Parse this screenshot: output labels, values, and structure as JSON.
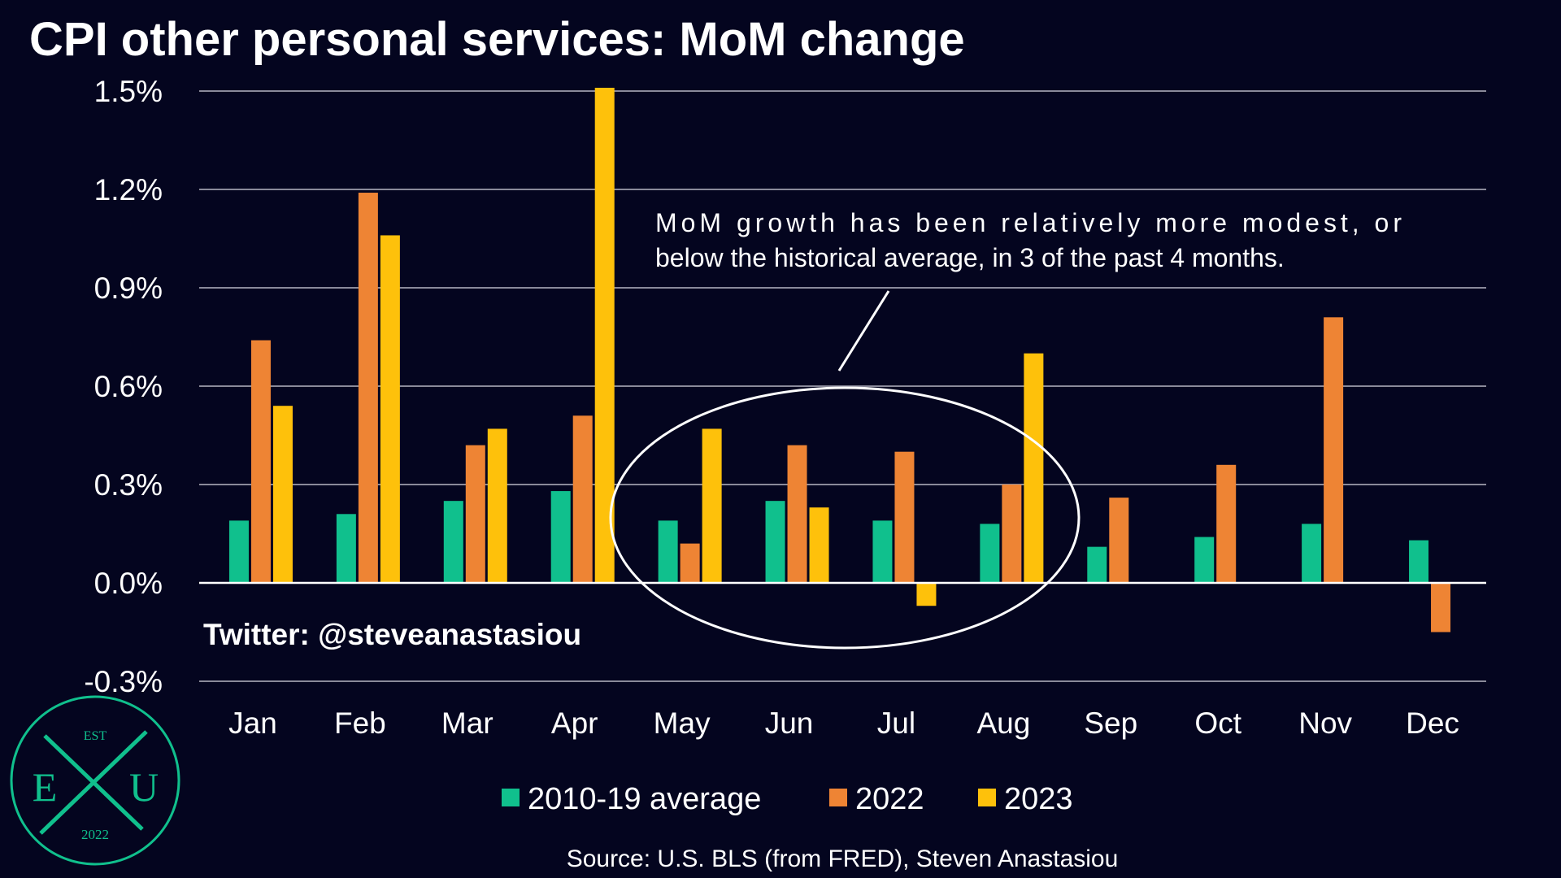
{
  "chart_data": {
    "type": "bar",
    "title": "CPI other personal services: MoM change",
    "categories": [
      "Jan",
      "Feb",
      "Mar",
      "Apr",
      "May",
      "Jun",
      "Jul",
      "Aug",
      "Sep",
      "Oct",
      "Nov",
      "Dec"
    ],
    "series": [
      {
        "name": "2010-19 average",
        "color": "#10c08d",
        "values": [
          0.19,
          0.21,
          0.25,
          0.28,
          0.19,
          0.25,
          0.19,
          0.18,
          0.11,
          0.14,
          0.18,
          0.13
        ]
      },
      {
        "name": "2022",
        "color": "#ee8434",
        "values": [
          0.74,
          1.19,
          0.42,
          0.51,
          0.12,
          0.42,
          0.4,
          0.3,
          0.26,
          0.36,
          0.81,
          -0.15
        ]
      },
      {
        "name": "2023",
        "color": "#fec10b",
        "values": [
          0.54,
          1.06,
          0.47,
          1.51,
          0.47,
          0.23,
          -0.07,
          0.7,
          null,
          null,
          null,
          null
        ]
      }
    ],
    "yticks": [
      "1.5%",
      "1.2%",
      "0.9%",
      "0.6%",
      "0.3%",
      "0.0%",
      "-0.3%"
    ],
    "ytick_values": [
      1.5,
      1.2,
      0.9,
      0.6,
      0.3,
      0.0,
      -0.3
    ],
    "ylim": [
      -0.3,
      1.5
    ],
    "grid": true,
    "legend_position": "bottom",
    "annotation": "MoM growth has been relatively more modest, or below the historical average, in 3 of the past 4 months.",
    "annotation_lines": [
      "MoM growth has been relatively more modest, or",
      "below the historical average, in 3 of the past 4 months."
    ],
    "watermark": "Twitter: @steveanastasiou",
    "source": "Source: U.S. BLS (from FRED), Steven Anastasiou"
  },
  "logo": {
    "top": "EST",
    "left": "E",
    "right": "U",
    "bottom": "2022",
    "center": "X",
    "color": "#10c08d"
  },
  "colors": {
    "background": "#04051f",
    "grid": "#8a8a9a",
    "text": "#ffffff"
  }
}
